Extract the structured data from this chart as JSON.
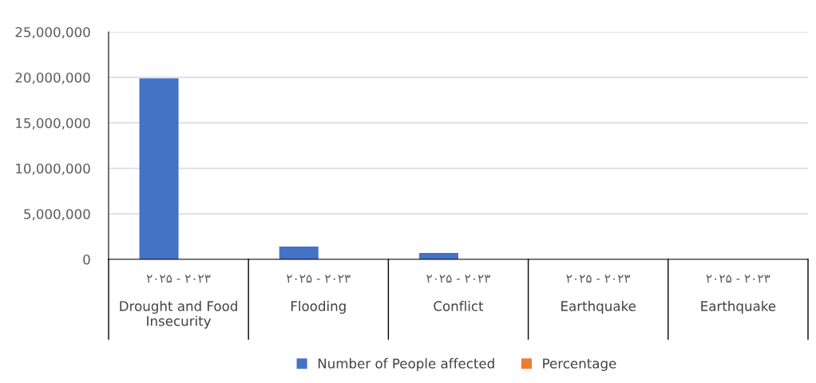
{
  "chart_data": {
    "type": "bar",
    "categories": [
      "۲۰۲۵ - ۲۰۲۳\nDrought and Food Insecurity",
      "۲۰۲۵ - ۲۰۲۳\nFlooding",
      "۲۰۲۵ - ۲۰۲۳\nConflict",
      "۲۰۲۵ - ۲۰۲۳\nEarthquake",
      "۲۰۲۵ - ۲۰۲۳\nEarthquake"
    ],
    "series": [
      {
        "name": "Number of People affected",
        "color": "#4472c4",
        "values": [
          19900000,
          1400000,
          700000,
          0,
          0
        ]
      },
      {
        "name": "Percentage",
        "color": "#ed7d31",
        "values": [
          null,
          null,
          null,
          null,
          null
        ]
      }
    ],
    "ylim": [
      0,
      25000000
    ],
    "yticks": [
      {
        "value": 0,
        "label": "0"
      },
      {
        "value": 5000000,
        "label": "5,000,000"
      },
      {
        "value": 10000000,
        "label": "10,000,000"
      },
      {
        "value": 15000000,
        "label": "15,000,000"
      },
      {
        "value": 20000000,
        "label": "20,000,000"
      },
      {
        "value": 25000000,
        "label": "25,000,000"
      }
    ],
    "grid": "y",
    "legend": "bottom"
  }
}
